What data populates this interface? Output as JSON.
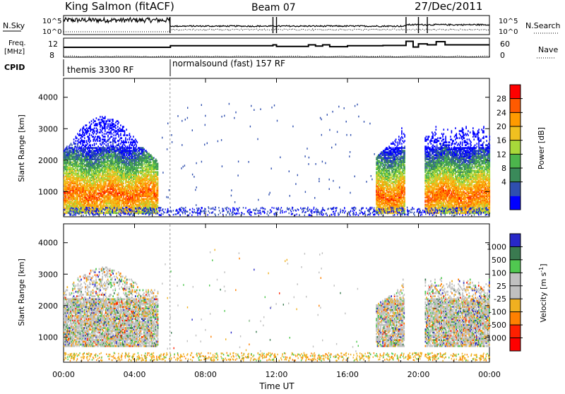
{
  "header": {
    "station": "King Salmon (fitACF)",
    "beam": "Beam 07",
    "date": "27/Dec/2011"
  },
  "left_labels": {
    "nsky": "N.Sky",
    "freq_line1": "Freq.",
    "freq_line2": "[MHz]",
    "cpid": "CPID"
  },
  "right_labels": {
    "nsearch": "N.Search",
    "nave": "Nave"
  },
  "cpid_modes": [
    {
      "label": "themis 3300 RF"
    },
    {
      "label": "normalsound (fast) 157 RF"
    }
  ],
  "chart_data": [
    {
      "type": "line",
      "title": "",
      "ylabel": "N.Sky",
      "y2label": "N.Search",
      "yscale": "log",
      "yticks": [
        "10^5",
        "10^0"
      ],
      "y2ticks": [
        "10^5",
        "10^0"
      ]
    },
    {
      "type": "line",
      "ylabel": "Freq. [MHz]",
      "y2label": "Nave",
      "yticks": [
        12,
        8
      ],
      "y2ticks": [
        60,
        0
      ],
      "x_hours": [
        0,
        6,
        6.02,
        11.8,
        12,
        13.8,
        14.2,
        14.6,
        15,
        16,
        18,
        19.3,
        19.7,
        20,
        20.5,
        21,
        21.5,
        24
      ],
      "freq_mhz": [
        10.1,
        10.1,
        10.6,
        10.9,
        10.4,
        10.9,
        10.5,
        10.9,
        10.3,
        10.6,
        10.7,
        12.0,
        10.2,
        11.2,
        10.9,
        11.9,
        10.9,
        10.9
      ]
    },
    {
      "type": "heatmap",
      "ylabel": "Slant Range [km]",
      "ylim": [
        200,
        4600
      ],
      "yticks": [
        1000,
        2000,
        3000,
        4000
      ],
      "colorbar_label": "Power [dB]",
      "colorbar_ticks": [
        "28",
        "24",
        "20",
        "16",
        "12",
        "8",
        "4"
      ],
      "colors": [
        "#0000ff",
        "#2f4faf",
        "#3a8a5a",
        "#4cb54c",
        "#a8d83a",
        "#f0c020",
        "#ff9a00",
        "#ff5a00",
        "#ff0000"
      ],
      "regions": [
        {
          "t0": 0.0,
          "t1": 5.3,
          "r0": 300,
          "r1": 3500,
          "peak_km": 900
        },
        {
          "t0": 17.6,
          "t1": 24.0,
          "r0": 300,
          "r1": 3400,
          "peak_km": 850
        }
      ]
    },
    {
      "type": "heatmap",
      "ylabel": "Slant Range [km]",
      "ylim": [
        200,
        4600
      ],
      "yticks": [
        1000,
        2000,
        3000,
        4000
      ],
      "colorbar_label": "Velocity [m s^-1]",
      "colorbar_ticks": [
        "1000",
        "500",
        "100",
        "25",
        "-25",
        "-100",
        "-500",
        "-1000"
      ],
      "colors": [
        "#2828c8",
        "#3a7a50",
        "#50c850",
        "#c0c0c0",
        "#c0c0c0",
        "#f0b020",
        "#ff8000",
        "#ff2000",
        "#ff0000"
      ]
    }
  ],
  "xaxis": {
    "label": "Time UT",
    "ticks": [
      "00:00",
      "04:00",
      "08:00",
      "12:00",
      "16:00",
      "20:00",
      "00:00"
    ]
  }
}
